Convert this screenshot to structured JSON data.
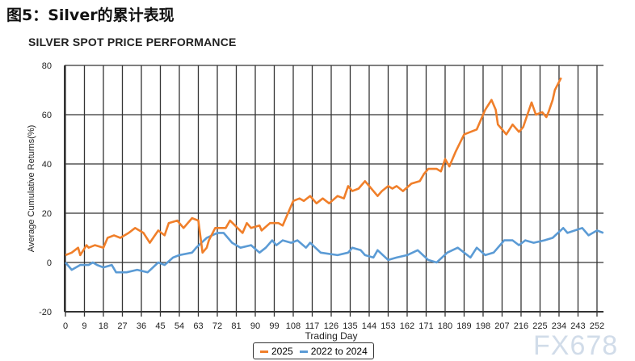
{
  "heading": "图5：Silver的累计表现",
  "watermark": "FX678",
  "chart_data": {
    "type": "line",
    "title": "SILVER SPOT PRICE PERFORMANCE",
    "xlabel": "Trading Day",
    "ylabel": "Average Cumulative Returns(%)",
    "xlim": [
      0,
      256
    ],
    "ylim": [
      -20,
      80
    ],
    "xticks": [
      0,
      9,
      18,
      27,
      36,
      45,
      54,
      63,
      72,
      81,
      90,
      99,
      108,
      117,
      126,
      135,
      144,
      153,
      162,
      171,
      180,
      189,
      198,
      207,
      216,
      225,
      234,
      243,
      252
    ],
    "yticks": [
      -20,
      0,
      20,
      40,
      60,
      80
    ],
    "grid": true,
    "legend_position": "bottom",
    "series": [
      {
        "name": "2025",
        "color": "#f07f2a",
        "x": [
          0,
          3,
          6,
          7,
          10,
          11,
          14,
          18,
          20,
          23,
          26,
          30,
          33,
          37,
          40,
          44,
          47,
          49,
          53,
          56,
          60,
          63,
          65,
          67,
          68,
          71,
          76,
          78,
          84,
          86,
          88,
          92,
          93,
          97,
          101,
          103,
          106,
          108,
          111,
          113,
          116,
          119,
          122,
          125,
          129,
          132,
          134,
          136,
          139,
          142,
          144,
          148,
          150,
          153,
          155,
          157,
          160,
          164,
          168,
          170,
          172,
          176,
          178,
          180,
          182,
          185,
          189,
          195,
          199,
          202,
          204,
          205,
          209,
          212,
          215,
          217,
          219,
          221,
          223,
          226,
          228,
          229,
          231,
          232,
          235
        ],
        "y": [
          3,
          4,
          6,
          3,
          7,
          6,
          7,
          6,
          10,
          11,
          10,
          12,
          14,
          12,
          8,
          13,
          11,
          16,
          17,
          14,
          18,
          17,
          4,
          6,
          9,
          14,
          14,
          17,
          12,
          16,
          14,
          15,
          13,
          16,
          16,
          15,
          21,
          25,
          26,
          25,
          27,
          24,
          26,
          24,
          27,
          26,
          31,
          29,
          30,
          33,
          31,
          27,
          29,
          31,
          30,
          31,
          29,
          32,
          33,
          36,
          38,
          38,
          37,
          42,
          39,
          45,
          52,
          54,
          62,
          66,
          62,
          56,
          52,
          56,
          53,
          55,
          60,
          65,
          60,
          61,
          59,
          61,
          66,
          70,
          75
        ]
      },
      {
        "name": "2022 to 2024",
        "color": "#5b9bd5",
        "x": [
          0,
          3,
          7,
          11,
          13,
          15,
          18,
          22,
          24,
          29,
          34,
          39,
          44,
          47,
          51,
          54,
          60,
          62,
          67,
          72,
          75,
          79,
          83,
          88,
          92,
          95,
          98,
          100,
          103,
          107,
          110,
          114,
          116,
          121,
          129,
          134,
          136,
          140,
          142,
          146,
          148,
          153,
          157,
          162,
          167,
          172,
          176,
          181,
          186,
          192,
          195,
          199,
          203,
          208,
          212,
          215,
          218,
          222,
          227,
          231,
          236,
          238,
          245,
          248,
          252,
          255
        ],
        "y": [
          0,
          -3,
          -1,
          -1,
          0,
          -1,
          -2,
          -1,
          -4,
          -4,
          -3,
          -4,
          0,
          -1,
          2,
          3,
          4,
          6,
          10,
          12,
          12,
          8,
          6,
          7,
          4,
          6,
          9,
          7,
          9,
          8,
          9,
          6,
          8,
          4,
          3,
          4,
          6,
          5,
          3,
          2,
          5,
          1,
          2,
          3,
          5,
          1,
          0,
          4,
          6,
          2,
          6,
          3,
          4,
          9,
          9,
          7,
          9,
          8,
          9,
          10,
          14,
          12,
          14,
          11,
          13,
          12
        ]
      }
    ]
  }
}
